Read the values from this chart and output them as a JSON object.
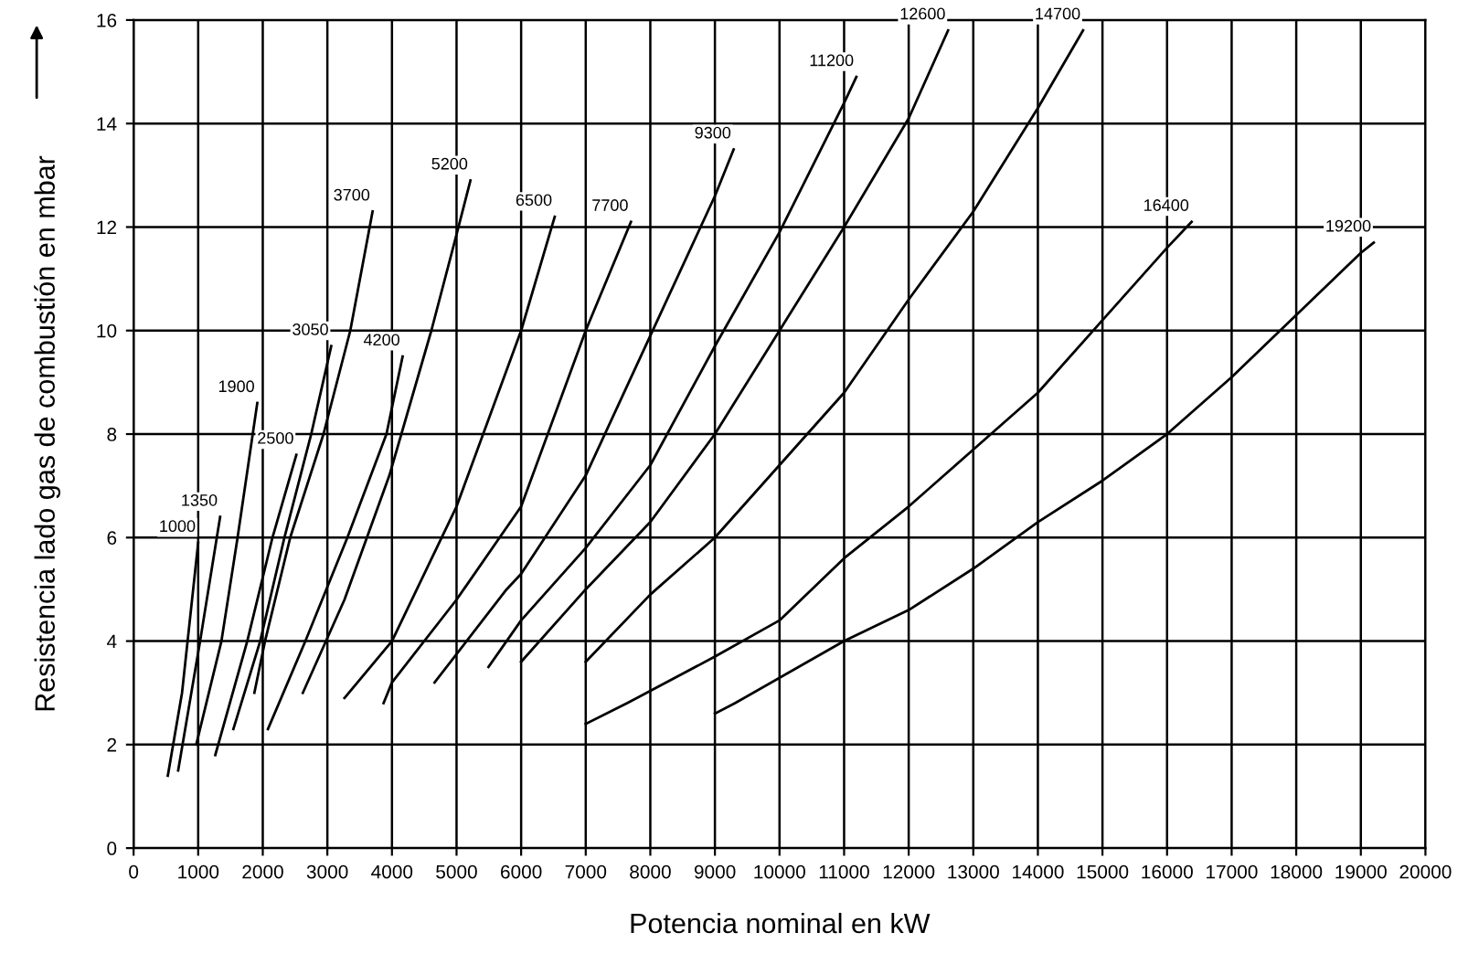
{
  "chart_data": {
    "type": "line",
    "xlabel": "Potencia nominal en kW",
    "ylabel": "Resistencia lado gas de combustión en mbar",
    "xlim": [
      0,
      20000
    ],
    "ylim": [
      0,
      16
    ],
    "xticks": [
      0,
      1000,
      2000,
      3000,
      4000,
      5000,
      6000,
      7000,
      8000,
      9000,
      10000,
      11000,
      12000,
      13000,
      14000,
      15000,
      16000,
      17000,
      18000,
      19000,
      20000
    ],
    "yticks": [
      0,
      2,
      4,
      6,
      8,
      10,
      12,
      14,
      16
    ],
    "grid": true,
    "legend": false,
    "marker": "none",
    "line_style": "solid",
    "series": [
      {
        "name": "1000",
        "color": "#000000",
        "x": [
          530,
          750,
          1000
        ],
        "values": [
          1.4,
          3.0,
          5.9
        ]
      },
      {
        "name": "1350",
        "color": "#000000",
        "x": [
          690,
          1030,
          1340
        ],
        "values": [
          1.5,
          4.0,
          6.4
        ]
      },
      {
        "name": "1900",
        "color": "#000000",
        "x": [
          970,
          1360,
          1610,
          1915
        ],
        "values": [
          2.0,
          4.0,
          6.0,
          8.6
        ]
      },
      {
        "name": "2500",
        "color": "#000000",
        "x": [
          1265,
          1760,
          2150,
          2520
        ],
        "values": [
          1.8,
          4.0,
          6.0,
          7.6
        ]
      },
      {
        "name": "3050",
        "color": "#000000",
        "x": [
          1545,
          1960,
          2335,
          2750,
          3060
        ],
        "values": [
          2.3,
          4.0,
          6.0,
          8.0,
          9.7
        ]
      },
      {
        "name": "3700",
        "color": "#000000",
        "x": [
          1870,
          2035,
          2425,
          2940,
          3355,
          3700
        ],
        "values": [
          3.0,
          4.0,
          6.0,
          8.0,
          10.0,
          12.3
        ]
      },
      {
        "name": "4200",
        "color": "#000000",
        "x": [
          2080,
          2660,
          3310,
          3915,
          4165
        ],
        "values": [
          2.3,
          4.0,
          6.0,
          8.0,
          9.5
        ]
      },
      {
        "name": "5200",
        "color": "#000000",
        "x": [
          2620,
          3265,
          3960,
          4610,
          5030,
          5215
        ],
        "values": [
          3.0,
          4.8,
          7.2,
          10.0,
          12.0,
          12.9
        ]
      },
      {
        "name": "6500",
        "color": "#000000",
        "x": [
          3265,
          4000,
          5000,
          6000,
          6520
        ],
        "values": [
          2.9,
          4.0,
          6.6,
          10.0,
          12.2
        ]
      },
      {
        "name": "7700",
        "color": "#000000",
        "x": [
          3870,
          4000,
          5000,
          6000,
          7000,
          7700
        ],
        "values": [
          2.8,
          3.2,
          4.8,
          6.6,
          10.0,
          12.1
        ]
      },
      {
        "name": "9300",
        "color": "#000000",
        "x": [
          4660,
          5775,
          6000,
          7000,
          8000,
          9000,
          9290
        ],
        "values": [
          3.2,
          5.0,
          5.3,
          7.2,
          9.9,
          12.6,
          13.5
        ]
      },
      {
        "name": "11200",
        "color": "#000000",
        "x": [
          5495,
          6000,
          7000,
          8000,
          9000,
          10000,
          11000,
          11190
        ],
        "values": [
          3.5,
          4.4,
          5.8,
          7.4,
          9.7,
          11.9,
          14.4,
          14.9
        ]
      },
      {
        "name": "12600",
        "color": "#000000",
        "x": [
          6000,
          7000,
          8000,
          9000,
          10000,
          11000,
          12000,
          12610
        ],
        "values": [
          3.6,
          5.0,
          6.3,
          8.0,
          10.0,
          12.0,
          14.1,
          15.8
        ]
      },
      {
        "name": "14700",
        "color": "#000000",
        "x": [
          7000,
          8000,
          9000,
          10000,
          11000,
          12000,
          13000,
          14000,
          14700
        ],
        "values": [
          3.6,
          4.9,
          6.0,
          7.4,
          8.8,
          10.6,
          12.3,
          14.3,
          15.8
        ]
      },
      {
        "name": "16400",
        "color": "#000000",
        "x": [
          7000,
          7640,
          9000,
          10000,
          11000,
          12000,
          13000,
          14000,
          15000,
          16000,
          16380
        ],
        "values": [
          2.4,
          2.8,
          3.7,
          4.4,
          5.6,
          6.6,
          7.7,
          8.8,
          10.2,
          11.6,
          12.1
        ]
      },
      {
        "name": "19200",
        "color": "#000000",
        "x": [
          9000,
          9310,
          11000,
          12000,
          13000,
          14000,
          15000,
          16000,
          17000,
          18000,
          19000,
          19200
        ],
        "values": [
          2.6,
          2.8,
          4.0,
          4.6,
          5.4,
          6.3,
          7.1,
          8.0,
          9.1,
          10.3,
          11.5,
          11.7
        ]
      }
    ]
  }
}
